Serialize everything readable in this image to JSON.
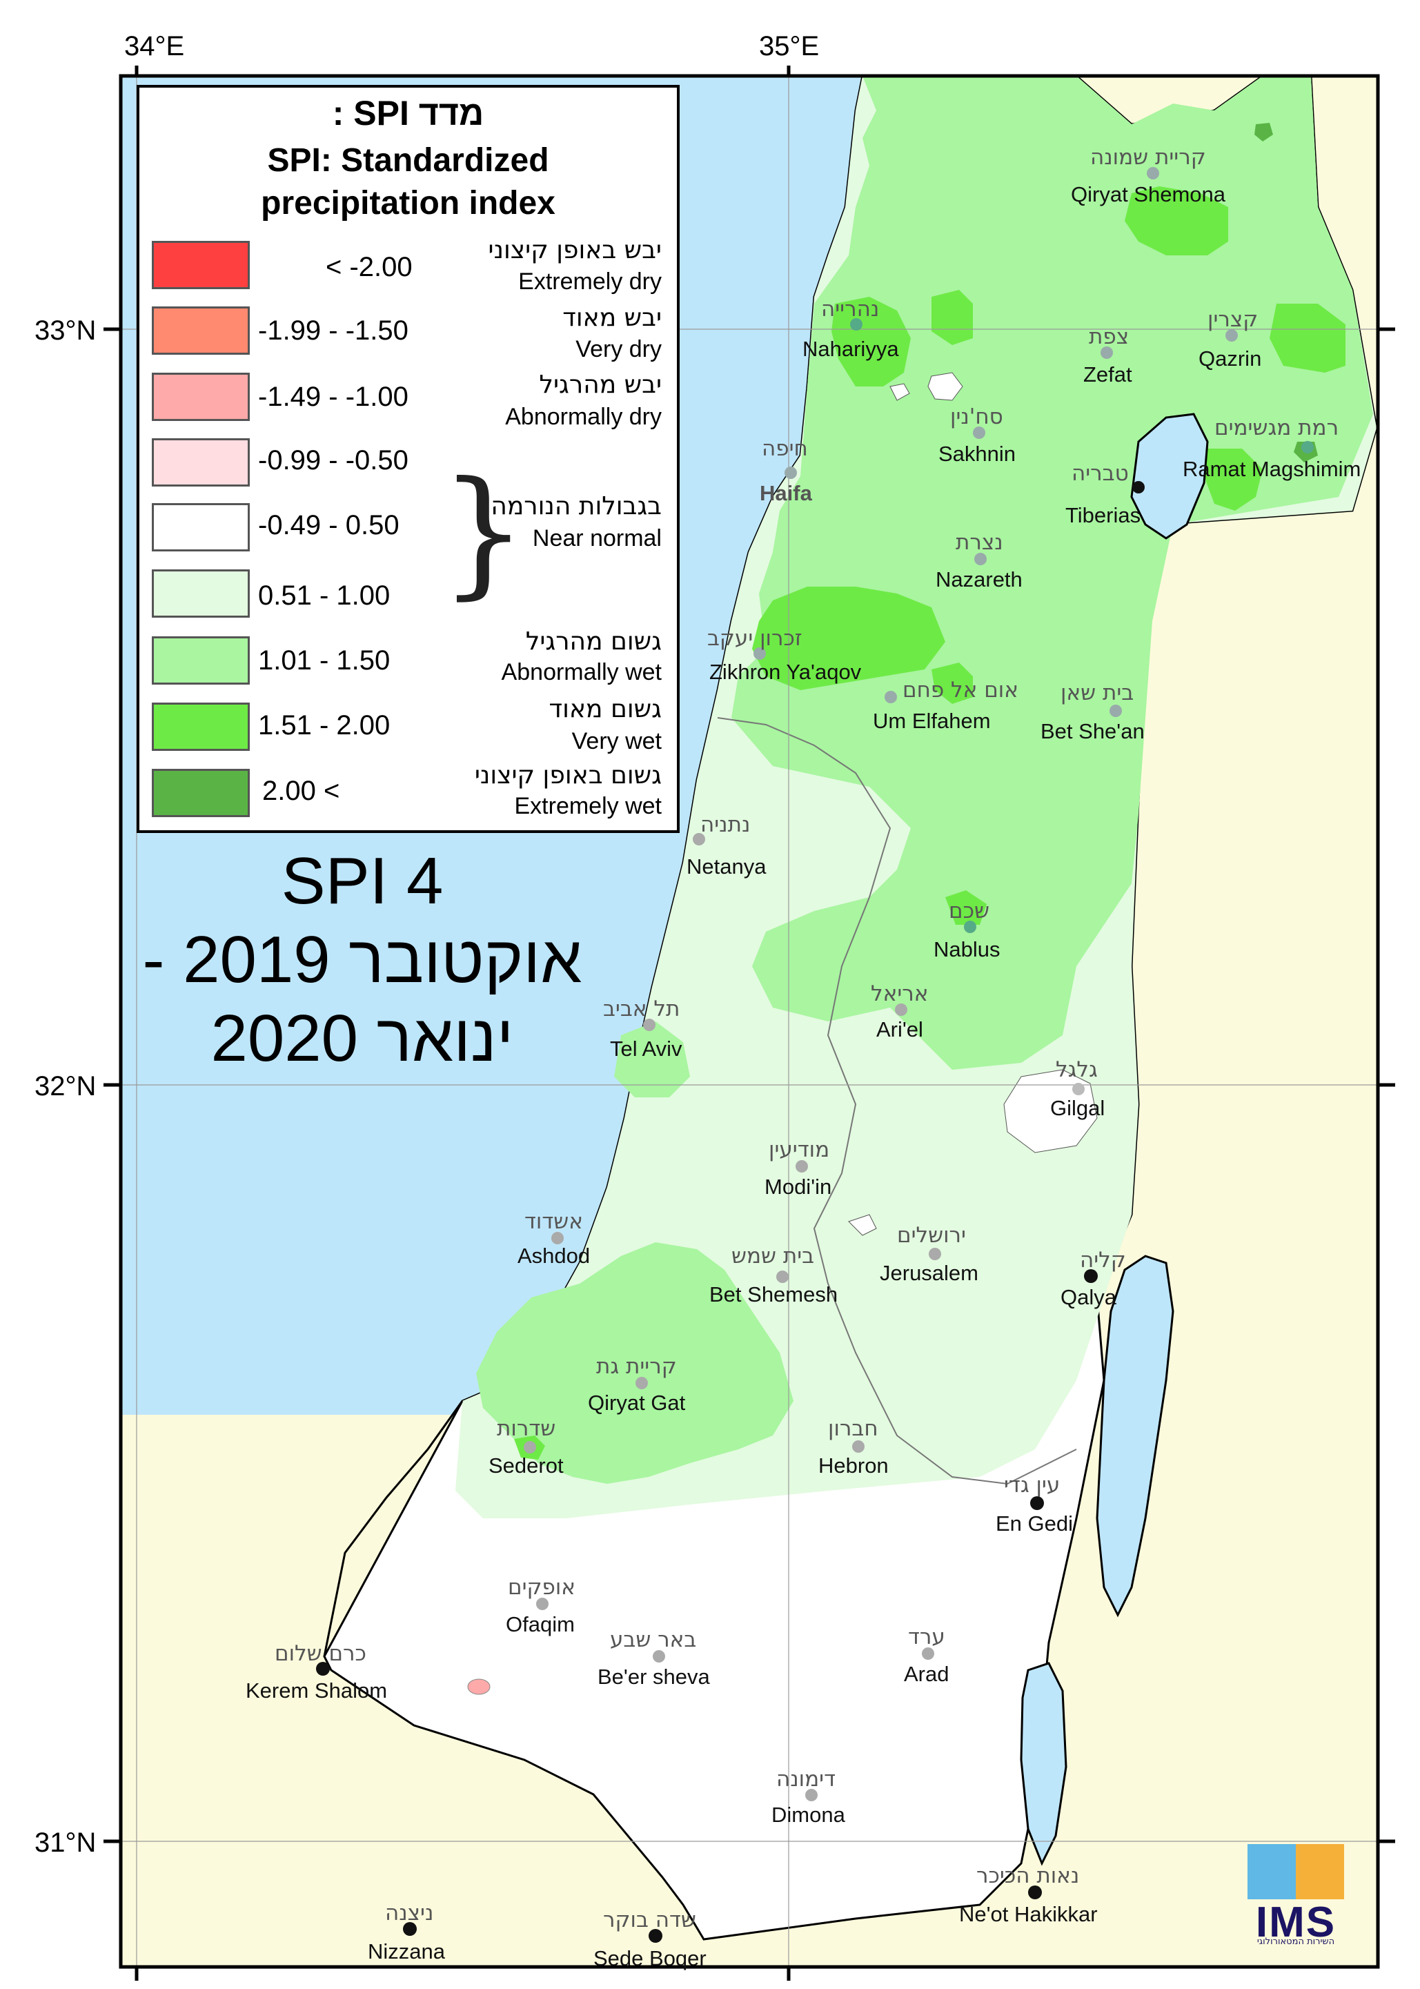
{
  "axes": {
    "top_labels": [
      "34°E",
      "35°E"
    ],
    "left_labels": [
      "33°N",
      "32°N",
      "31°N"
    ]
  },
  "legend": {
    "title_he": "מדד SPI :",
    "title_en_1": "SPI: Standardized",
    "title_en_2": "precipitation index",
    "items": [
      {
        "color": "#ff4040",
        "range": "< -2.00",
        "he": "יבש באופן קיצוני",
        "en": "Extremely dry"
      },
      {
        "color": "#ff8a70",
        "range": "-1.99 - -1.50",
        "he": "יבש מאוד",
        "en": "Very dry"
      },
      {
        "color": "#ffaaaa",
        "range": "-1.49 - -1.00",
        "he": "יבש מהרגיל",
        "en": "Abnormally dry"
      },
      {
        "color": "#ffdde0",
        "range": "-0.99 - -0.50",
        "he": "",
        "en": ""
      },
      {
        "color": "#ffffff",
        "range": "-0.49 - 0.50",
        "he": "בגבולות הנורמה",
        "en": "Near normal"
      },
      {
        "color": "#e3fbe0",
        "range": "0.51 - 1.00",
        "he": "",
        "en": ""
      },
      {
        "color": "#a9f5a0",
        "range": "1.01 - 1.50",
        "he": "גשום מהרגיל",
        "en": "Abnormally wet"
      },
      {
        "color": "#6eea46",
        "range": "1.51 - 2.00",
        "he": "גשום מאוד",
        "en": "Very wet"
      },
      {
        "color": "#5ab445",
        "range": "2.00 <",
        "he": "גשום באופן קיצוני",
        "en": "Extremely wet"
      }
    ]
  },
  "title": {
    "line1": "SPI 4",
    "line2": "אוקטובר 2019 -",
    "line3": "ינואר 2020"
  },
  "logo": {
    "text": "IMS",
    "subtitle": "השירות המטאורולוגי"
  },
  "colors": {
    "sea": "#bee6fa",
    "neighbor": "#fcfadc",
    "normal": "#ffffff",
    "slightly_wet": "#e3fbe0",
    "abnormally_wet": "#a9f5a0",
    "very_wet": "#6eea46",
    "extremely_wet": "#5ab445",
    "dry": "#ffaaaa"
  },
  "cities": [
    {
      "he": "קריית שמונה",
      "en": "Qiryat Shemona"
    },
    {
      "he": "נהרייה",
      "en": "Nahariyya"
    },
    {
      "he": "צפת",
      "en": "Zefat"
    },
    {
      "he": "קצרין",
      "en": "Qazrin"
    },
    {
      "he": "סח'נין",
      "en": "Sakhnin"
    },
    {
      "he": "חיפה",
      "en": "Haifa"
    },
    {
      "he": "רמת מגשימים",
      "en": "Ramat Magshimim"
    },
    {
      "he": "טבריה",
      "en": "Tiberias"
    },
    {
      "he": "נצרת",
      "en": "Nazareth"
    },
    {
      "he": "זכרון יעקב",
      "en": "Zikhron Ya'aqov"
    },
    {
      "he": "אום אל פחם",
      "en": "Um Elfahem"
    },
    {
      "he": "בית שאן",
      "en": "Bet She'an"
    },
    {
      "he": "נתניה",
      "en": "Netanya"
    },
    {
      "he": "שכם",
      "en": "Nablus"
    },
    {
      "he": "אריאל",
      "en": "Ari'el"
    },
    {
      "he": "תל אביב",
      "en": "Tel Aviv"
    },
    {
      "he": "גלגל",
      "en": "Gilgal"
    },
    {
      "he": "מודיעין",
      "en": "Modi'in"
    },
    {
      "he": "אשדוד",
      "en": "Ashdod"
    },
    {
      "he": "ירושלים",
      "en": "Jerusalem"
    },
    {
      "he": "בית שמש",
      "en": "Bet Shemesh"
    },
    {
      "he": "קליה",
      "en": "Qalya"
    },
    {
      "he": "קריית גת",
      "en": "Qiryat Gat"
    },
    {
      "he": "שדרות",
      "en": "Sederot"
    },
    {
      "he": "חברון",
      "en": "Hebron"
    },
    {
      "he": "עין גדי",
      "en": "En Gedi"
    },
    {
      "he": "אופקים",
      "en": "Ofaqim"
    },
    {
      "he": "כרם שלום",
      "en": "Kerem Shalom"
    },
    {
      "he": "באר שבע",
      "en": "Be'er sheva"
    },
    {
      "he": "ערד",
      "en": "Arad"
    },
    {
      "he": "דימונה",
      "en": "Dimona"
    },
    {
      "he": "נאות הכיכר",
      "en": "Ne'ot Hakikkar"
    },
    {
      "he": "ניצנה",
      "en": "Nizzana"
    },
    {
      "he": "שדה בוקר",
      "en": "Sede Boqer"
    }
  ]
}
